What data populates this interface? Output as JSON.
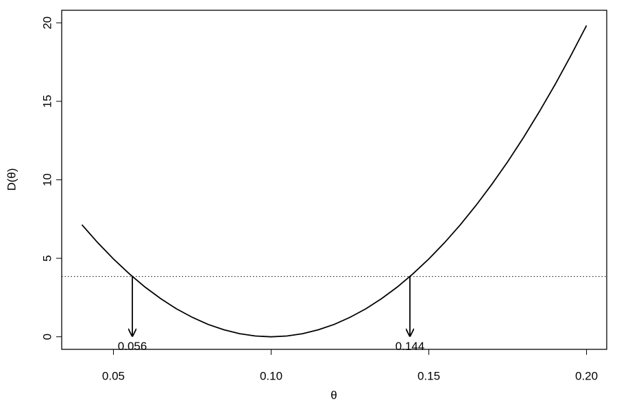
{
  "chart_data": {
    "type": "line",
    "xlabel": "θ",
    "ylabel": "D(θ)",
    "x": [
      0.04,
      0.045,
      0.05,
      0.055,
      0.06,
      0.065,
      0.07,
      0.075,
      0.08,
      0.085,
      0.09,
      0.095,
      0.1,
      0.105,
      0.11,
      0.115,
      0.12,
      0.125,
      0.13,
      0.135,
      0.14,
      0.145,
      0.15,
      0.155,
      0.16,
      0.165,
      0.17,
      0.175,
      0.18,
      0.185,
      0.19,
      0.195,
      0.2
    ],
    "values": [
      7.14,
      6.0,
      4.96,
      4.02,
      3.17,
      2.43,
      1.78,
      1.24,
      0.79,
      0.45,
      0.2,
      0.05,
      0,
      0.05,
      0.2,
      0.45,
      0.79,
      1.24,
      1.78,
      2.43,
      3.17,
      4.02,
      4.96,
      6.0,
      7.14,
      8.38,
      9.72,
      11.15,
      12.69,
      14.33,
      16.06,
      17.9,
      19.83
    ],
    "color": "#000000",
    "threshold": 3.84,
    "annotations": [
      {
        "x": 0.056,
        "label": "0.056"
      },
      {
        "x": 0.144,
        "label": "0.144"
      }
    ],
    "xlim": [
      0.0336,
      0.2064
    ],
    "ylim": [
      -0.8,
      20.8
    ],
    "xticks": [
      0.05,
      {
        "value": 0.1,
        "label": "0.10"
      },
      0.15,
      {
        "value": 0.2,
        "label": "0.20"
      }
    ],
    "yticks": [
      0,
      5,
      10,
      15,
      20
    ]
  }
}
